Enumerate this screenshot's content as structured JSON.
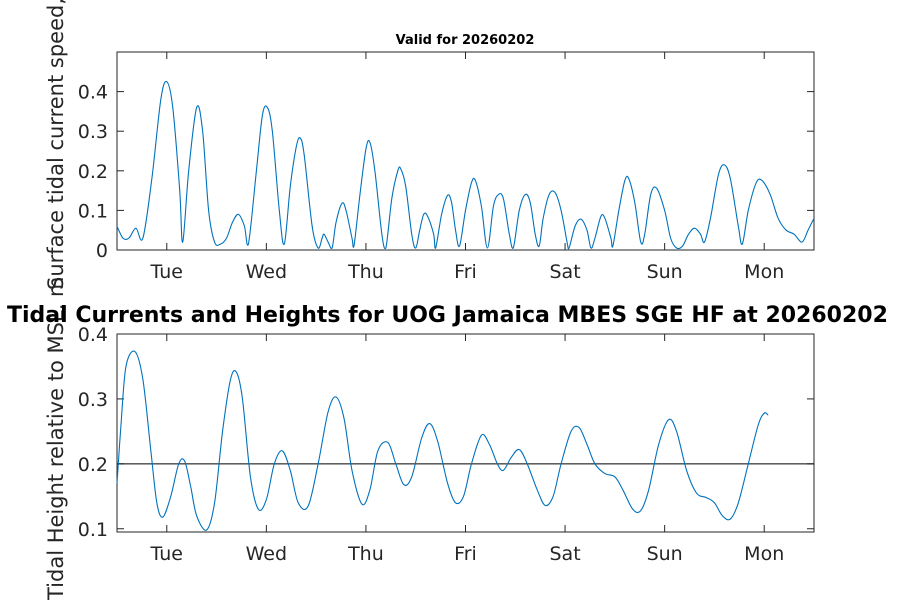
{
  "chart_data": [
    {
      "type": "line",
      "title": "Valid for 20260202",
      "ylabel": "Surface tidal current speed, kn",
      "xlabel": "",
      "ylim": [
        0,
        0.5
      ],
      "yticks": [
        0,
        0.1,
        0.2,
        0.3,
        0.4
      ],
      "ytick_labels": [
        "0",
        "0.1",
        "0.2",
        "0.3",
        "0.4"
      ],
      "xlim": [
        0,
        7
      ],
      "xticks": [
        0.5,
        1.5,
        2.5,
        3.5,
        4.5,
        5.5,
        6.5
      ],
      "xtick_labels": [
        "Tue",
        "Wed",
        "Thu",
        "Fri",
        "Sat",
        "Sun",
        "Mon"
      ],
      "grid": false,
      "line_color": "#0072bd",
      "series": [
        {
          "values": [
            [
              0.0,
              0.06
            ],
            [
              0.06,
              0.03
            ],
            [
              0.12,
              0.03
            ],
            [
              0.19,
              0.055
            ],
            [
              0.26,
              0.03
            ],
            [
              0.35,
              0.18
            ],
            [
              0.44,
              0.38
            ],
            [
              0.5,
              0.425
            ],
            [
              0.56,
              0.36
            ],
            [
              0.63,
              0.15
            ],
            [
              0.66,
              0.02
            ],
            [
              0.72,
              0.2
            ],
            [
              0.8,
              0.36
            ],
            [
              0.86,
              0.3
            ],
            [
              0.92,
              0.1
            ],
            [
              0.98,
              0.02
            ],
            [
              1.04,
              0.015
            ],
            [
              1.1,
              0.03
            ],
            [
              1.16,
              0.07
            ],
            [
              1.22,
              0.09
            ],
            [
              1.28,
              0.06
            ],
            [
              1.32,
              0.015
            ],
            [
              1.4,
              0.2
            ],
            [
              1.46,
              0.34
            ],
            [
              1.51,
              0.36
            ],
            [
              1.56,
              0.3
            ],
            [
              1.63,
              0.1
            ],
            [
              1.68,
              0.015
            ],
            [
              1.74,
              0.16
            ],
            [
              1.8,
              0.26
            ],
            [
              1.84,
              0.283
            ],
            [
              1.88,
              0.24
            ],
            [
              1.96,
              0.06
            ],
            [
              2.02,
              0.005
            ],
            [
              2.06,
              0.03
            ],
            [
              2.08,
              0.04
            ],
            [
              2.12,
              0.02
            ],
            [
              2.16,
              0.005
            ],
            [
              2.2,
              0.07
            ],
            [
              2.26,
              0.118
            ],
            [
              2.3,
              0.1
            ],
            [
              2.36,
              0.03
            ],
            [
              2.38,
              0.01
            ],
            [
              2.44,
              0.14
            ],
            [
              2.5,
              0.255
            ],
            [
              2.54,
              0.272
            ],
            [
              2.59,
              0.2
            ],
            [
              2.66,
              0.04
            ],
            [
              2.7,
              0.005
            ],
            [
              2.76,
              0.13
            ],
            [
              2.82,
              0.2
            ],
            [
              2.85,
              0.205
            ],
            [
              2.9,
              0.16
            ],
            [
              2.96,
              0.04
            ],
            [
              3.0,
              0.005
            ],
            [
              3.04,
              0.05
            ],
            [
              3.08,
              0.09
            ],
            [
              3.12,
              0.085
            ],
            [
              3.18,
              0.04
            ],
            [
              3.2,
              0.005
            ],
            [
              3.26,
              0.09
            ],
            [
              3.32,
              0.138
            ],
            [
              3.36,
              0.12
            ],
            [
              3.4,
              0.05
            ],
            [
              3.44,
              0.01
            ],
            [
              3.5,
              0.1
            ],
            [
              3.56,
              0.17
            ],
            [
              3.6,
              0.175
            ],
            [
              3.66,
              0.11
            ],
            [
              3.72,
              0.005
            ],
            [
              3.78,
              0.11
            ],
            [
              3.83,
              0.14
            ],
            [
              3.88,
              0.13
            ],
            [
              3.94,
              0.04
            ],
            [
              3.98,
              0.005
            ],
            [
              4.04,
              0.1
            ],
            [
              4.1,
              0.14
            ],
            [
              4.15,
              0.12
            ],
            [
              4.2,
              0.04
            ],
            [
              4.24,
              0.01
            ],
            [
              4.28,
              0.08
            ],
            [
              4.34,
              0.14
            ],
            [
              4.4,
              0.145
            ],
            [
              4.46,
              0.1
            ],
            [
              4.52,
              0.02
            ],
            [
              4.54,
              0.005
            ],
            [
              4.6,
              0.06
            ],
            [
              4.66,
              0.078
            ],
            [
              4.72,
              0.05
            ],
            [
              4.76,
              0.005
            ],
            [
              4.8,
              0.03
            ],
            [
              4.86,
              0.085
            ],
            [
              4.9,
              0.08
            ],
            [
              4.96,
              0.03
            ],
            [
              4.98,
              0.01
            ],
            [
              5.04,
              0.1
            ],
            [
              5.1,
              0.175
            ],
            [
              5.14,
              0.18
            ],
            [
              5.2,
              0.12
            ],
            [
              5.26,
              0.02
            ],
            [
              5.3,
              0.04
            ],
            [
              5.36,
              0.14
            ],
            [
              5.42,
              0.156
            ],
            [
              5.5,
              0.1
            ],
            [
              5.56,
              0.03
            ],
            [
              5.62,
              0.005
            ],
            [
              5.68,
              0.01
            ],
            [
              5.74,
              0.04
            ],
            [
              5.8,
              0.055
            ],
            [
              5.86,
              0.04
            ],
            [
              5.9,
              0.02
            ],
            [
              5.96,
              0.08
            ],
            [
              6.04,
              0.19
            ],
            [
              6.1,
              0.215
            ],
            [
              6.16,
              0.18
            ],
            [
              6.24,
              0.06
            ],
            [
              6.28,
              0.015
            ],
            [
              6.34,
              0.1
            ],
            [
              6.42,
              0.17
            ],
            [
              6.48,
              0.175
            ],
            [
              6.56,
              0.14
            ],
            [
              6.64,
              0.08
            ],
            [
              6.72,
              0.05
            ],
            [
              6.8,
              0.04
            ],
            [
              6.88,
              0.02
            ],
            [
              6.94,
              0.05
            ],
            [
              7.0,
              0.08
            ]
          ]
        }
      ]
    },
    {
      "type": "line",
      "title": "Tidal Currents and Heights for UOG Jamaica MBES SGE HF at 20260202",
      "ylabel": "Tidal Height relative to MSL, m",
      "xlabel": "",
      "ylim": [
        0.095,
        0.4
      ],
      "yticks": [
        0.1,
        0.2,
        0.3,
        0.4
      ],
      "ytick_labels": [
        "0.1",
        "0.2",
        "0.3",
        "0.4"
      ],
      "xlim": [
        0,
        7
      ],
      "xticks": [
        0.5,
        1.5,
        2.5,
        3.5,
        4.5,
        5.5,
        6.5
      ],
      "xtick_labels": [
        "Tue",
        "Wed",
        "Thu",
        "Fri",
        "Sat",
        "Sun",
        "Mon"
      ],
      "grid": false,
      "line_color": "#0072bd",
      "reference_line": 0.2,
      "series": [
        {
          "values": [
            [
              0.0,
              0.17
            ],
            [
              0.04,
              0.26
            ],
            [
              0.09,
              0.35
            ],
            [
              0.18,
              0.373
            ],
            [
              0.26,
              0.33
            ],
            [
              0.34,
              0.22
            ],
            [
              0.4,
              0.14
            ],
            [
              0.46,
              0.118
            ],
            [
              0.54,
              0.15
            ],
            [
              0.62,
              0.2
            ],
            [
              0.68,
              0.204
            ],
            [
              0.74,
              0.165
            ],
            [
              0.8,
              0.12
            ],
            [
              0.9,
              0.098
            ],
            [
              0.98,
              0.14
            ],
            [
              1.06,
              0.25
            ],
            [
              1.14,
              0.33
            ],
            [
              1.2,
              0.341
            ],
            [
              1.26,
              0.3
            ],
            [
              1.34,
              0.18
            ],
            [
              1.42,
              0.13
            ],
            [
              1.5,
              0.145
            ],
            [
              1.58,
              0.2
            ],
            [
              1.66,
              0.22
            ],
            [
              1.74,
              0.19
            ],
            [
              1.82,
              0.14
            ],
            [
              1.92,
              0.135
            ],
            [
              2.02,
              0.2
            ],
            [
              2.12,
              0.28
            ],
            [
              2.2,
              0.303
            ],
            [
              2.28,
              0.27
            ],
            [
              2.36,
              0.19
            ],
            [
              2.46,
              0.138
            ],
            [
              2.54,
              0.16
            ],
            [
              2.62,
              0.22
            ],
            [
              2.72,
              0.233
            ],
            [
              2.8,
              0.2
            ],
            [
              2.88,
              0.168
            ],
            [
              2.96,
              0.18
            ],
            [
              3.06,
              0.24
            ],
            [
              3.14,
              0.262
            ],
            [
              3.22,
              0.235
            ],
            [
              3.32,
              0.17
            ],
            [
              3.4,
              0.14
            ],
            [
              3.48,
              0.15
            ],
            [
              3.56,
              0.2
            ],
            [
              3.66,
              0.244
            ],
            [
              3.74,
              0.23
            ],
            [
              3.82,
              0.2
            ],
            [
              3.88,
              0.19
            ],
            [
              3.96,
              0.21
            ],
            [
              4.04,
              0.222
            ],
            [
              4.12,
              0.2
            ],
            [
              4.22,
              0.16
            ],
            [
              4.3,
              0.136
            ],
            [
              4.38,
              0.15
            ],
            [
              4.46,
              0.2
            ],
            [
              4.56,
              0.25
            ],
            [
              4.64,
              0.256
            ],
            [
              4.72,
              0.23
            ],
            [
              4.8,
              0.2
            ],
            [
              4.9,
              0.185
            ],
            [
              5.0,
              0.18
            ],
            [
              5.08,
              0.16
            ],
            [
              5.18,
              0.13
            ],
            [
              5.26,
              0.128
            ],
            [
              5.34,
              0.16
            ],
            [
              5.44,
              0.23
            ],
            [
              5.54,
              0.268
            ],
            [
              5.62,
              0.25
            ],
            [
              5.72,
              0.19
            ],
            [
              5.82,
              0.155
            ],
            [
              5.92,
              0.148
            ],
            [
              6.0,
              0.14
            ],
            [
              6.08,
              0.12
            ],
            [
              6.16,
              0.115
            ],
            [
              6.24,
              0.14
            ],
            [
              6.34,
              0.2
            ],
            [
              6.44,
              0.26
            ],
            [
              6.5,
              0.278
            ],
            [
              6.54,
              0.275
            ]
          ]
        }
      ]
    }
  ]
}
